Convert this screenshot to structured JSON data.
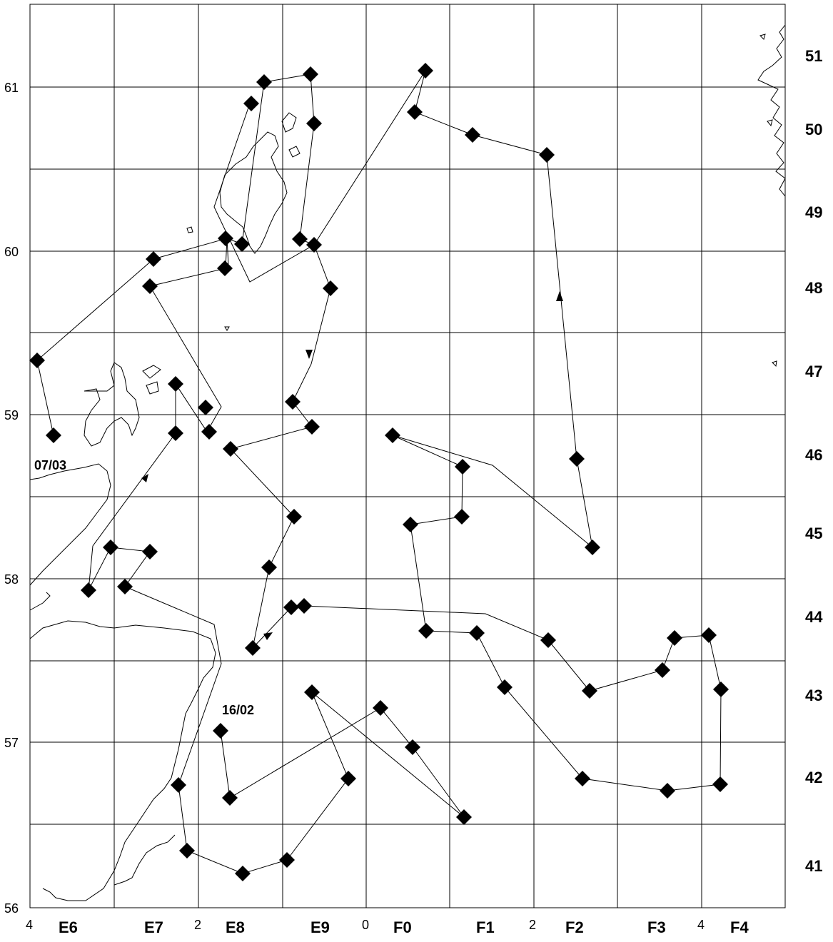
{
  "map": {
    "lat_labels": [
      "61",
      "60",
      "59",
      "58",
      "57",
      "56"
    ],
    "rect_row_labels": [
      "51",
      "50",
      "49",
      "48",
      "47",
      "46",
      "45",
      "44",
      "43",
      "42",
      "41"
    ],
    "col_labels": [
      "E6",
      "E7",
      "E8",
      "E9",
      "F0",
      "F1",
      "F2",
      "F3",
      "F4"
    ],
    "lon_degree_labels": [
      "4",
      "2",
      "0",
      "2",
      "4"
    ],
    "date_labels": [
      "07/03",
      "16/02"
    ],
    "colors": {
      "ink": "#000000",
      "background": "#ffffff"
    }
  }
}
